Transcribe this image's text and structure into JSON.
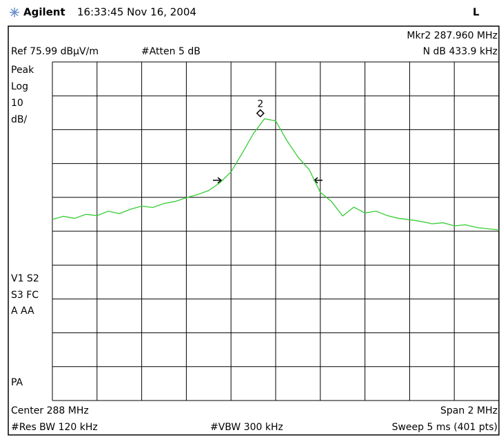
{
  "header": {
    "brand": "Agilent",
    "timestamp": "16:33:45  Nov 16, 2004",
    "mode": "L"
  },
  "chart_data": {
    "type": "line",
    "marker_readout": "Mkr2  287.960 MHz",
    "marker_label": "2",
    "reference": "Ref 75.99 dBµV/m",
    "attenuation": "#Atten 5 dB",
    "ndb_readout": "N dB   433.9 kHz",
    "scale_labels": [
      "Peak",
      "Log",
      "10",
      "dB/"
    ],
    "status_labels": [
      "V1  S2",
      "S3  FC",
      "A   AA"
    ],
    "pa_label": "PA",
    "center": "Center 288 MHz",
    "span": "Span 2 MHz",
    "res_bw": "#Res BW 120 kHz",
    "vbw": "#VBW 300 kHz",
    "sweep": "Sweep 5 ms (401 pts)",
    "x": [
      287.0,
      287.05,
      287.1,
      287.15,
      287.2,
      287.25,
      287.3,
      287.35,
      287.4,
      287.45,
      287.5,
      287.55,
      287.6,
      287.65,
      287.7,
      287.75,
      287.8,
      287.85,
      287.9,
      287.95,
      288.0,
      288.05,
      288.1,
      288.15,
      288.2,
      288.25,
      288.3,
      288.35,
      288.4,
      288.45,
      288.5,
      288.55,
      288.6,
      288.65,
      288.7,
      288.75,
      288.8,
      288.85,
      288.9,
      288.95,
      289.0
    ],
    "series": [
      {
        "color": "#33cc33",
        "values": [
          29.5,
          30.4,
          29.8,
          31.0,
          30.6,
          31.9,
          31.2,
          32.5,
          33.4,
          33.0,
          34.2,
          34.8,
          35.9,
          36.8,
          38.0,
          40.3,
          43.5,
          49.0,
          54.8,
          59.2,
          58.6,
          52.8,
          47.9,
          44.2,
          37.5,
          34.8,
          30.5,
          33.1,
          31.4,
          31.9,
          30.6,
          29.8,
          29.4,
          28.9,
          28.2,
          28.5,
          27.6,
          27.9,
          27.1,
          26.7,
          26.4
        ]
      }
    ],
    "xlim": [
      287,
      289
    ],
    "ylim": [
      -24.01,
      75.99
    ],
    "grid": true
  }
}
